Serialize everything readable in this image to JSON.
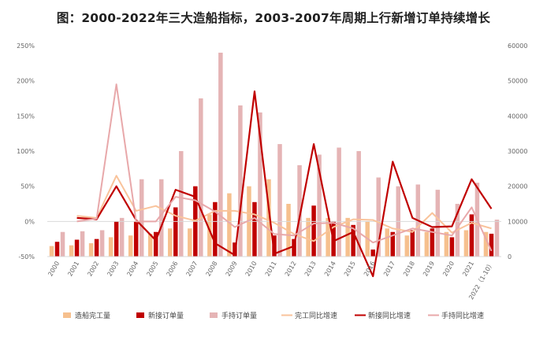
{
  "chart_data": {
    "type": "bar",
    "title": "图：2000-2022年三大造船指标，2003-2007年周期上行新增订单持续增长",
    "categories": [
      "2000",
      "2001",
      "2002",
      "2003",
      "2004",
      "2005",
      "2006",
      "2007",
      "2008",
      "2009",
      "2010",
      "2011",
      "2012",
      "2013",
      "2014",
      "2015",
      "2016",
      "2017",
      "2018",
      "2019",
      "2020",
      "2021",
      "2022（1-10）"
    ],
    "left_axis": {
      "ticks": [
        "-50%",
        "0%",
        "50%",
        "100%",
        "150%",
        "200%",
        "250%"
      ],
      "ylim": [
        -50,
        250
      ]
    },
    "right_axis": {
      "ticks": [
        "0",
        "10000",
        "20000",
        "30000",
        "40000",
        "50000",
        "60000"
      ],
      "ylim": [
        0,
        60000
      ]
    },
    "bar_series": [
      {
        "name": "造船完工量",
        "color": "#f6c08e",
        "axis": "right",
        "values": [
          3000,
          3200,
          3800,
          5500,
          6000,
          6500,
          8000,
          8000,
          12000,
          18000,
          20000,
          22000,
          15000,
          11000,
          11000,
          11000,
          10000,
          8000,
          6000,
          7000,
          7000,
          7500,
          7000
        ]
      },
      {
        "name": "新接订单量",
        "color": "#c00000",
        "axis": "right",
        "values": [
          4200,
          4800,
          5000,
          10000,
          10000,
          7000,
          14000,
          20000,
          15500,
          4000,
          15500,
          6000,
          5000,
          14500,
          10000,
          9000,
          2000,
          7000,
          7500,
          8000,
          5500,
          12000,
          6500
        ]
      },
      {
        "name": "手持订单量",
        "color": "#e5b4b5",
        "axis": "right",
        "values": [
          7000,
          7200,
          7500,
          11000,
          22000,
          22000,
          30000,
          45000,
          58000,
          43000,
          41000,
          32000,
          26000,
          29000,
          31000,
          30000,
          22500,
          20000,
          20500,
          19000,
          15000,
          21000,
          10500
        ]
      }
    ],
    "line_series": [
      {
        "name": "完工同比增速",
        "color": "#f9c39b",
        "axis": "left",
        "values": [
          null,
          8,
          5,
          65,
          15,
          22,
          8,
          1,
          15,
          15,
          10,
          -2,
          -18,
          -28,
          -8,
          3,
          2,
          -10,
          -15,
          12,
          -16,
          -2,
          -10
        ]
      },
      {
        "name": "新接同比增速",
        "color": "#c00000",
        "axis": "left",
        "values": [
          null,
          5,
          3,
          50,
          2,
          -27,
          45,
          35,
          -31,
          -48,
          185,
          -46,
          -35,
          110,
          -28,
          -15,
          -78,
          85,
          5,
          -8,
          -7,
          60,
          18
        ]
      },
      {
        "name": "手持同比增速",
        "color": "#e8a8aa",
        "axis": "left",
        "values": [
          null,
          0,
          4,
          195,
          0,
          0,
          35,
          30,
          14,
          -8,
          5,
          -18,
          -20,
          -3,
          -2,
          -10,
          -30,
          -20,
          -10,
          -15,
          -20,
          20,
          -42
        ]
      }
    ],
    "legend": {
      "placement": "bottom"
    },
    "grid": false
  }
}
